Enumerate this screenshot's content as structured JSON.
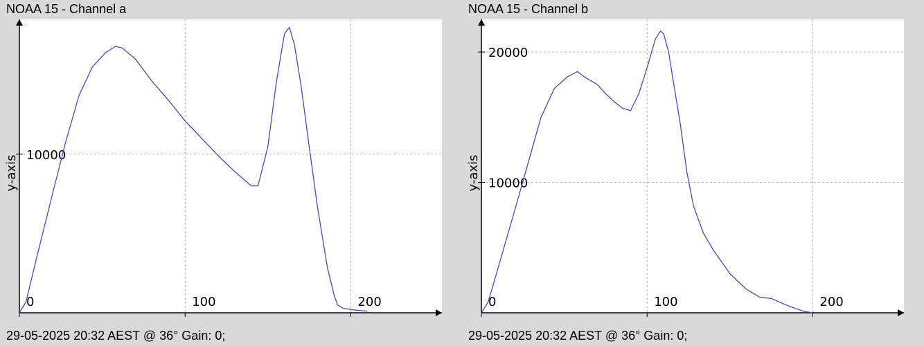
{
  "panels": [
    {
      "title": "NOAA 15 - Channel a",
      "footer": "29-05-2025 20:32 AEST @ 36° Gain: 0;"
    },
    {
      "title": "NOAA 15 - Channel b",
      "footer": "29-05-2025 20:32 AEST @ 36° Gain: 0;"
    }
  ],
  "chart_data": [
    {
      "type": "line",
      "title": "NOAA 15 - Channel a",
      "xlabel": "",
      "ylabel": "y-axis",
      "xlim": [
        0,
        255
      ],
      "ylim": [
        0,
        18500
      ],
      "xticks": [
        0,
        100,
        200
      ],
      "xtick_labels": [
        "0",
        "100",
        "200"
      ],
      "yticks": [
        10000
      ],
      "ytick_labels": [
        "10000"
      ],
      "grid": true,
      "line_color": "#4646c8",
      "series": [
        {
          "x": [
            0,
            4,
            10,
            20,
            28,
            36,
            44,
            52,
            58,
            62,
            70,
            80,
            90,
            100,
            110,
            120,
            130,
            140,
            144,
            150,
            155,
            160,
            163,
            166,
            170,
            175,
            180,
            186,
            190,
            192,
            195,
            200,
            205,
            210
          ],
          "y": [
            0,
            700,
            3300,
            7500,
            10800,
            13700,
            15500,
            16400,
            16800,
            16700,
            16000,
            14600,
            13400,
            12100,
            11000,
            9900,
            8900,
            8000,
            8000,
            10500,
            14500,
            17600,
            18000,
            16900,
            14300,
            10400,
            6600,
            2800,
            1100,
            500,
            300,
            200,
            150,
            100
          ]
        }
      ]
    },
    {
      "type": "line",
      "title": "NOAA 15 - Channel b",
      "xlabel": "",
      "ylabel": "y-axis",
      "xlim": [
        0,
        255
      ],
      "ylim": [
        0,
        22500
      ],
      "xticks": [
        0,
        100,
        200
      ],
      "xtick_labels": [
        "0",
        "100",
        "200"
      ],
      "yticks": [
        10000,
        20000
      ],
      "ytick_labels": [
        "10000",
        "20000"
      ],
      "grid": true,
      "line_color": "#4646c8",
      "series": [
        {
          "x": [
            0,
            4,
            10,
            20,
            28,
            36,
            44,
            52,
            58,
            62,
            70,
            75,
            80,
            85,
            90,
            95,
            100,
            105,
            108,
            110,
            113,
            116,
            120,
            124,
            128,
            134,
            140,
            150,
            160,
            168,
            175,
            182,
            190,
            195,
            200
          ],
          "y": [
            0,
            800,
            3400,
            7800,
            11400,
            15000,
            17200,
            18100,
            18500,
            18100,
            17500,
            16800,
            16200,
            15700,
            15500,
            16800,
            18800,
            21000,
            21600,
            21400,
            20000,
            17600,
            14500,
            10800,
            8200,
            6100,
            4800,
            3000,
            1800,
            1200,
            1100,
            700,
            300,
            100,
            0
          ]
        }
      ]
    }
  ]
}
